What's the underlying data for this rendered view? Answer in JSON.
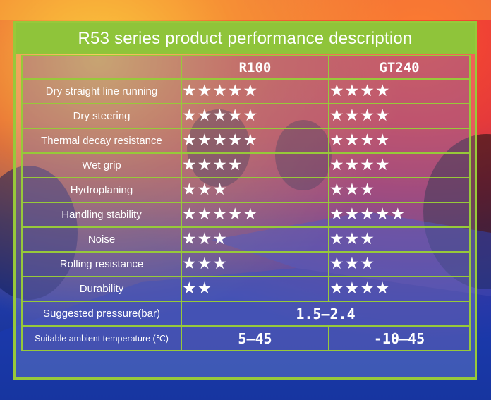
{
  "title": "R53 series product performance description",
  "columns": [
    "",
    "R100",
    "GT240"
  ],
  "star_glyph": "★",
  "rows": [
    {
      "label": "Dry straight line running",
      "r100_stars": 5,
      "gt240_stars": 4,
      "r100": "★★★★★",
      "gt240": "★★★★"
    },
    {
      "label": "Dry steering",
      "r100_stars": 5,
      "gt240_stars": 4,
      "r100": "★★★★★",
      "gt240": "★★★★"
    },
    {
      "label": "Thermal decay resistance",
      "r100_stars": 5,
      "gt240_stars": 4,
      "r100": "★★★★★",
      "gt240": "★★★★"
    },
    {
      "label": "Wet grip",
      "r100_stars": 4,
      "gt240_stars": 4,
      "r100": "★★★★",
      "gt240": "★★★★"
    },
    {
      "label": "Hydroplaning",
      "r100_stars": 3,
      "gt240_stars": 3,
      "r100": "★★★",
      "gt240": "★★★"
    },
    {
      "label": "Handling stability",
      "r100_stars": 5,
      "gt240_stars": 5,
      "r100": "★★★★★",
      "gt240": "★★★★★"
    },
    {
      "label": "Noise",
      "r100_stars": 3,
      "gt240_stars": 3,
      "r100": "★★★",
      "gt240": "★★★"
    },
    {
      "label": "Rolling resistance",
      "r100_stars": 3,
      "gt240_stars": 3,
      "r100": "★★★",
      "gt240": "★★★"
    },
    {
      "label": "Durability",
      "r100_stars": 2,
      "gt240_stars": 4,
      "r100": "★★",
      "gt240": "★★★★"
    }
  ],
  "pressure": {
    "label": "Suggested pressure(bar)",
    "value": "1.5—2.4"
  },
  "temperature": {
    "label": "Suitable ambient temperature (℃)",
    "r100": "5—45",
    "gt240": "-10—45"
  },
  "colors": {
    "accent_green": "#8fc43a",
    "background_blue": "#1f3aa8",
    "background_red": "#d8404a"
  }
}
